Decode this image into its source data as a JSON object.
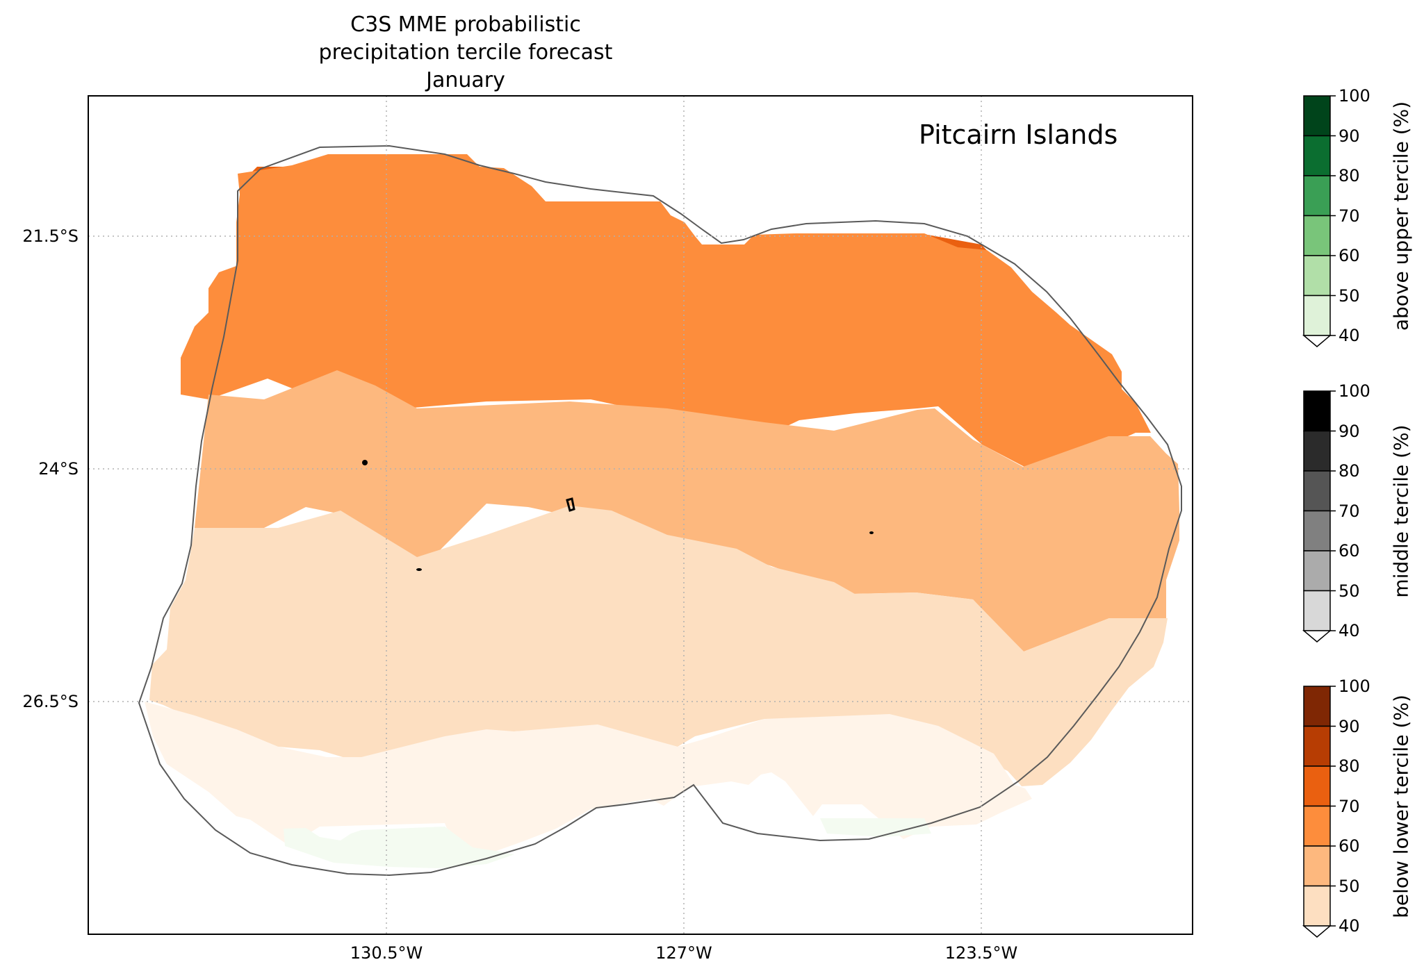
{
  "title": {
    "line1": "C3S MME probabilistic",
    "line2": "precipitation tercile forecast",
    "line3": "January"
  },
  "region_label": "Pitcairn Islands",
  "latitude_labels": [
    "21.5°S",
    "24°S",
    "26.5°S"
  ],
  "longitude_labels": [
    "130.5°W",
    "127°W",
    "123.5°W"
  ],
  "colorbars": [
    {
      "title": "above upper tercile (%)",
      "ticks": [
        "100",
        "90",
        "80",
        "70",
        "60",
        "50",
        "40"
      ],
      "colors": [
        "#00441b",
        "#0b6e30",
        "#3a9f55",
        "#79c57a",
        "#b1dfa8",
        "#dff2d9"
      ]
    },
    {
      "title": "middle tercile (%)",
      "ticks": [
        "100",
        "90",
        "80",
        "70",
        "60",
        "50",
        "40"
      ],
      "colors": [
        "#000000",
        "#2b2b2b",
        "#555555",
        "#808080",
        "#ababab",
        "#d8d8d8"
      ]
    },
    {
      "title": "below lower tercile (%)",
      "ticks": [
        "100",
        "90",
        "80",
        "70",
        "60",
        "50",
        "40"
      ],
      "colors": [
        "#7f2704",
        "#b73d03",
        "#ea6010",
        "#fd8d3c",
        "#fdb87e",
        "#fddfc1"
      ]
    }
  ],
  "map_bands": [
    {
      "category": "below lower tercile",
      "range_percent": [
        70,
        80
      ],
      "color": "#ea6010"
    },
    {
      "category": "below lower tercile",
      "range_percent": [
        60,
        70
      ],
      "color": "#fd8d3c"
    },
    {
      "category": "below lower tercile",
      "range_percent": [
        50,
        60
      ],
      "color": "#fdb87e"
    },
    {
      "category": "below lower tercile",
      "range_percent": [
        40,
        50
      ],
      "color": "#fddfc1"
    },
    {
      "category": "below lower tercile",
      "range_percent": [
        33,
        40
      ],
      "color": "#fff4e9"
    },
    {
      "category": "above upper tercile",
      "range_percent": [
        33,
        40
      ],
      "color": "#f4fbf1"
    }
  ]
}
